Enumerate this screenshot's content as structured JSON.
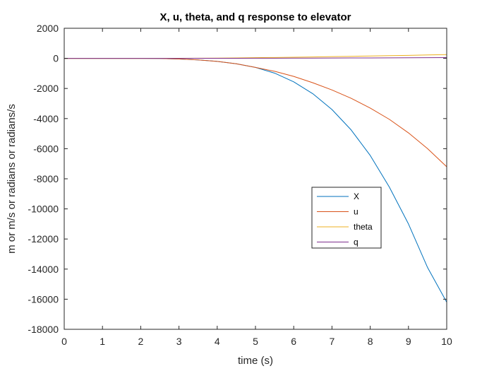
{
  "chart_data": {
    "type": "line",
    "title": "X, u, theta, and q response to elevator",
    "xlabel": "time (s)",
    "ylabel": "m or m/s or radians or radians/s",
    "xlim": [
      0,
      10
    ],
    "ylim": [
      -18000,
      2000
    ],
    "xticks": [
      0,
      1,
      2,
      3,
      4,
      5,
      6,
      7,
      8,
      9,
      10
    ],
    "yticks": [
      2000,
      0,
      -2000,
      -4000,
      -6000,
      -8000,
      -10000,
      -12000,
      -14000,
      -16000,
      -18000
    ],
    "grid": false,
    "legend_position": "inside right, below center",
    "x": [
      0,
      1,
      2,
      2.5,
      3,
      3.5,
      4,
      4.5,
      5,
      5.5,
      6,
      6.5,
      7,
      7.5,
      8,
      8.5,
      9,
      9.5,
      10
    ],
    "series": [
      {
        "name": "X",
        "color": "#0072BD",
        "values": [
          0,
          0,
          0,
          -10,
          -40,
          -100,
          -200,
          -360,
          -600,
          -980,
          -1560,
          -2350,
          -3400,
          -4750,
          -6450,
          -8550,
          -11000,
          -13900,
          -16200
        ]
      },
      {
        "name": "u",
        "color": "#D95319",
        "values": [
          0,
          0,
          0,
          -10,
          -40,
          -100,
          -200,
          -360,
          -600,
          -860,
          -1200,
          -1620,
          -2100,
          -2650,
          -3300,
          -4050,
          -4950,
          -6000,
          -7200
        ]
      },
      {
        "name": "theta",
        "color": "#EDB120",
        "values": [
          0,
          0,
          0,
          2,
          5,
          10,
          18,
          30,
          45,
          60,
          75,
          95,
          115,
          135,
          155,
          180,
          200,
          225,
          250
        ]
      },
      {
        "name": "q",
        "color": "#7E2F8E",
        "values": [
          0,
          0,
          0,
          0,
          1,
          2,
          4,
          6,
          8,
          11,
          14,
          18,
          22,
          26,
          30,
          35,
          40,
          45,
          50
        ]
      }
    ]
  }
}
